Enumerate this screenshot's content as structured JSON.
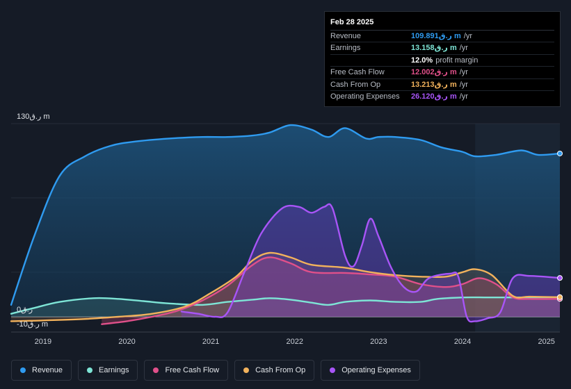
{
  "tooltip": {
    "date": "Feb 28 2025",
    "rows": [
      {
        "label": "Revenue",
        "value": "109.891ر.ق m",
        "suffix": "/yr",
        "color": "#2f9bf0"
      },
      {
        "label": "Earnings",
        "value": "13.158ر.ق m",
        "suffix": "/yr",
        "color": "#7ee5d6"
      },
      {
        "label": "",
        "value": "12.0%",
        "suffix": "profit margin",
        "color": "#ffffff"
      },
      {
        "label": "Free Cash Flow",
        "value": "12.002ر.ق m",
        "suffix": "/yr",
        "color": "#e0508a"
      },
      {
        "label": "Cash From Op",
        "value": "13.213ر.ق m",
        "suffix": "/yr",
        "color": "#f2b25c"
      },
      {
        "label": "Operating Expenses",
        "value": "26.120ر.ق m",
        "suffix": "/yr",
        "color": "#a855f7"
      }
    ]
  },
  "legend": [
    {
      "label": "Revenue",
      "color": "#2f9bf0"
    },
    {
      "label": "Earnings",
      "color": "#7ee5d6"
    },
    {
      "label": "Free Cash Flow",
      "color": "#e0508a"
    },
    {
      "label": "Cash From Op",
      "color": "#f2b25c"
    },
    {
      "label": "Operating Expenses",
      "color": "#a855f7"
    }
  ],
  "chart_data": {
    "type": "area",
    "title": "",
    "xlabel": "",
    "ylabel": "",
    "ylim": [
      -10,
      130
    ],
    "y_ticks": [
      {
        "value": 130,
        "label": "130ر.ق m"
      },
      {
        "value": 0,
        "label": "0ر.ق"
      },
      {
        "value": -10,
        "label": "-10ر.ق m"
      }
    ],
    "x_ticks": [
      {
        "value": 2019,
        "label": "2019"
      },
      {
        "value": 2020,
        "label": "2020"
      },
      {
        "value": 2021,
        "label": "2021"
      },
      {
        "value": 2022,
        "label": "2022"
      },
      {
        "value": 2023,
        "label": "2023"
      },
      {
        "value": 2024,
        "label": "2024"
      },
      {
        "value": 2025,
        "label": "2025"
      }
    ],
    "xlim": [
      2018.62,
      2025.16
    ],
    "highlight_start": 2024.15,
    "series": [
      {
        "name": "Revenue",
        "color": "#2f9bf0",
        "points": [
          [
            2018.62,
            8
          ],
          [
            2018.9,
            55
          ],
          [
            2019.2,
            95
          ],
          [
            2019.5,
            108
          ],
          [
            2019.8,
            115
          ],
          [
            2020.1,
            118
          ],
          [
            2020.5,
            120
          ],
          [
            2020.9,
            121
          ],
          [
            2021.2,
            121
          ],
          [
            2021.5,
            122
          ],
          [
            2021.7,
            124
          ],
          [
            2021.95,
            129
          ],
          [
            2022.2,
            126
          ],
          [
            2022.4,
            121
          ],
          [
            2022.6,
            127
          ],
          [
            2022.85,
            120
          ],
          [
            2023.0,
            121
          ],
          [
            2023.2,
            121
          ],
          [
            2023.5,
            119
          ],
          [
            2023.75,
            114
          ],
          [
            2024.0,
            111
          ],
          [
            2024.15,
            108
          ],
          [
            2024.4,
            109
          ],
          [
            2024.7,
            112
          ],
          [
            2024.9,
            109
          ],
          [
            2025.16,
            109.9
          ]
        ]
      },
      {
        "name": "Earnings",
        "color": "#7ee5d6",
        "points": [
          [
            2018.62,
            2
          ],
          [
            2018.9,
            6
          ],
          [
            2019.2,
            10
          ],
          [
            2019.6,
            12.5
          ],
          [
            2019.9,
            12
          ],
          [
            2020.2,
            10.5
          ],
          [
            2020.5,
            9
          ],
          [
            2020.9,
            8
          ],
          [
            2021.2,
            10
          ],
          [
            2021.5,
            11.5
          ],
          [
            2021.7,
            12.5
          ],
          [
            2021.95,
            11.5
          ],
          [
            2022.2,
            9.5
          ],
          [
            2022.4,
            8
          ],
          [
            2022.6,
            10
          ],
          [
            2022.9,
            11
          ],
          [
            2023.2,
            10
          ],
          [
            2023.5,
            10
          ],
          [
            2023.7,
            12
          ],
          [
            2024.0,
            13
          ],
          [
            2024.3,
            13
          ],
          [
            2024.6,
            13
          ],
          [
            2025.16,
            13.2
          ]
        ]
      },
      {
        "name": "Free Cash Flow",
        "color": "#e0508a",
        "points": [
          [
            2019.7,
            -5
          ],
          [
            2020.0,
            -3
          ],
          [
            2020.3,
            0
          ],
          [
            2020.6,
            4
          ],
          [
            2020.9,
            11
          ],
          [
            2021.2,
            21
          ],
          [
            2021.5,
            35
          ],
          [
            2021.7,
            40
          ],
          [
            2021.95,
            36
          ],
          [
            2022.2,
            30
          ],
          [
            2022.6,
            29.5
          ],
          [
            2022.9,
            28.5
          ],
          [
            2023.2,
            27
          ],
          [
            2023.5,
            22
          ],
          [
            2023.8,
            20
          ],
          [
            2024.0,
            22
          ],
          [
            2024.2,
            26
          ],
          [
            2024.4,
            22
          ],
          [
            2024.6,
            13
          ],
          [
            2024.8,
            12
          ],
          [
            2025.16,
            12
          ]
        ]
      },
      {
        "name": "Cash From Op",
        "color": "#f2b25c",
        "points": [
          [
            2018.62,
            -3
          ],
          [
            2019.0,
            -2.5
          ],
          [
            2019.5,
            -1.5
          ],
          [
            2019.9,
            0
          ],
          [
            2020.3,
            2
          ],
          [
            2020.7,
            7
          ],
          [
            2021.0,
            16
          ],
          [
            2021.3,
            27
          ],
          [
            2021.5,
            38
          ],
          [
            2021.7,
            43
          ],
          [
            2021.95,
            40
          ],
          [
            2022.2,
            35
          ],
          [
            2022.6,
            33
          ],
          [
            2022.9,
            30
          ],
          [
            2023.2,
            28
          ],
          [
            2023.5,
            27
          ],
          [
            2023.8,
            27
          ],
          [
            2024.0,
            30
          ],
          [
            2024.15,
            32
          ],
          [
            2024.35,
            28
          ],
          [
            2024.6,
            14
          ],
          [
            2024.8,
            13.5
          ],
          [
            2025.16,
            13.2
          ]
        ]
      },
      {
        "name": "Operating Expenses",
        "color": "#a855f7",
        "points": [
          [
            2020.65,
            3.5
          ],
          [
            2020.85,
            2
          ],
          [
            2021.05,
            0
          ],
          [
            2021.2,
            3
          ],
          [
            2021.4,
            30
          ],
          [
            2021.6,
            56
          ],
          [
            2021.85,
            73
          ],
          [
            2022.05,
            74
          ],
          [
            2022.2,
            70
          ],
          [
            2022.35,
            74
          ],
          [
            2022.45,
            73
          ],
          [
            2022.6,
            41
          ],
          [
            2022.7,
            34
          ],
          [
            2022.8,
            48
          ],
          [
            2022.9,
            66
          ],
          [
            2023.0,
            54
          ],
          [
            2023.15,
            33
          ],
          [
            2023.3,
            20
          ],
          [
            2023.45,
            17
          ],
          [
            2023.6,
            26
          ],
          [
            2023.85,
            29
          ],
          [
            2023.95,
            27
          ],
          [
            2024.05,
            0
          ],
          [
            2024.15,
            -3
          ],
          [
            2024.3,
            -1
          ],
          [
            2024.45,
            3
          ],
          [
            2024.6,
            26
          ],
          [
            2024.8,
            27.5
          ],
          [
            2025.16,
            26.1
          ]
        ]
      }
    ]
  }
}
